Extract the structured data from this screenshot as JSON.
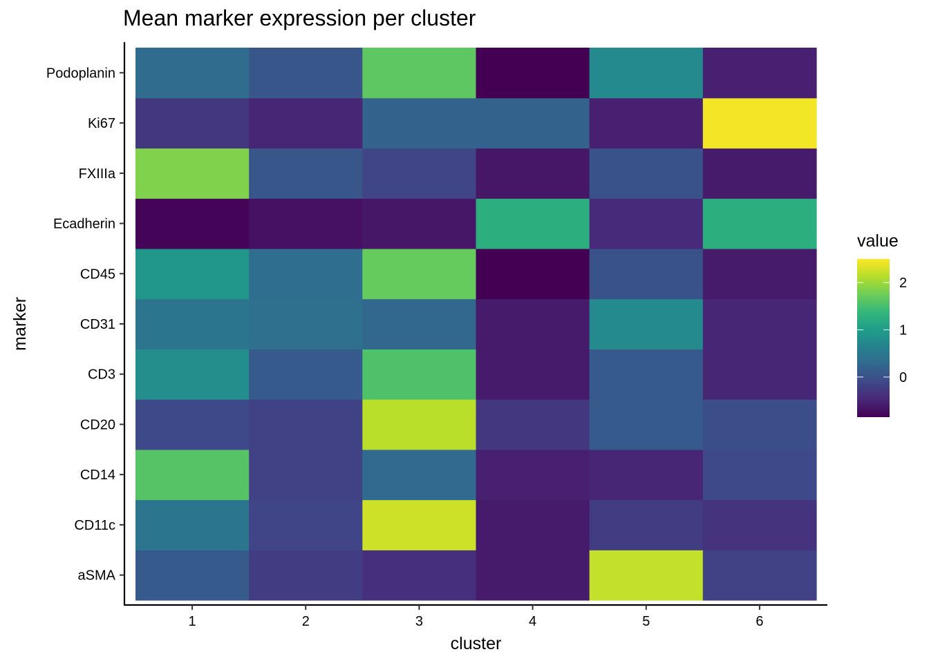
{
  "chart_data": {
    "type": "heatmap",
    "title": "Mean marker expression per cluster",
    "xlabel": "cluster",
    "ylabel": "marker",
    "x_categories": [
      "1",
      "2",
      "3",
      "4",
      "5",
      "6"
    ],
    "y_categories": [
      "aSMA",
      "CD11c",
      "CD14",
      "CD20",
      "CD3",
      "CD31",
      "CD45",
      "Ecadherin",
      "FXIIIa",
      "Ki67",
      "Podoplanin"
    ],
    "values": {
      "Podoplanin": [
        0.32,
        0.05,
        1.65,
        -0.85,
        0.75,
        -0.55
      ],
      "Ki67": [
        -0.3,
        -0.5,
        0.2,
        0.2,
        -0.55,
        2.45
      ],
      "FXIIIa": [
        1.85,
        0.05,
        -0.15,
        -0.65,
        0.0,
        -0.6
      ],
      "Ecadherin": [
        -0.82,
        -0.7,
        -0.65,
        1.25,
        -0.45,
        1.25
      ],
      "CD45": [
        0.92,
        0.35,
        1.7,
        -0.85,
        0.0,
        -0.6
      ],
      "CD31": [
        0.45,
        0.38,
        0.25,
        -0.6,
        0.75,
        -0.5
      ],
      "CD3": [
        0.8,
        0.1,
        1.55,
        -0.6,
        0.1,
        -0.5
      ],
      "CD20": [
        -0.1,
        -0.2,
        2.15,
        -0.3,
        0.1,
        -0.05
      ],
      "CD14": [
        1.6,
        -0.2,
        0.3,
        -0.55,
        -0.5,
        -0.1
      ],
      "CD11c": [
        0.45,
        -0.15,
        2.25,
        -0.6,
        -0.25,
        -0.35
      ],
      "aSMA": [
        0.1,
        -0.25,
        -0.4,
        -0.6,
        2.2,
        -0.2
      ]
    },
    "colorbar": {
      "title": "value",
      "min": -0.85,
      "max": 2.5,
      "ticks": [
        0,
        1,
        2
      ],
      "palette": "viridis",
      "palette_stops": [
        "#440154",
        "#482878",
        "#3e4989",
        "#31688e",
        "#26828e",
        "#1f9e89",
        "#35b779",
        "#6ece58",
        "#b5de2b",
        "#fde725"
      ]
    },
    "legend_position": "right",
    "grid": false
  }
}
